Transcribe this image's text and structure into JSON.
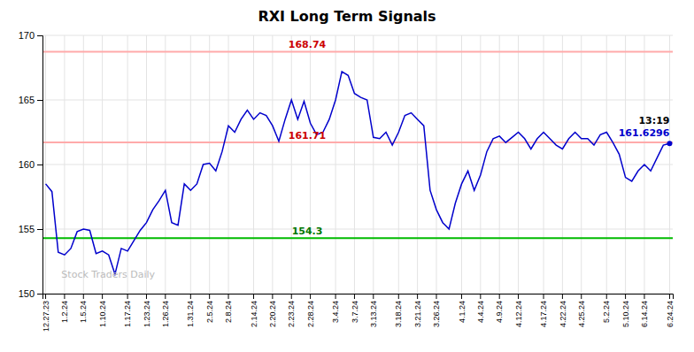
{
  "chart_data": {
    "type": "line",
    "title": "RXI Long Term Signals",
    "categories": [
      "12.27.23",
      null,
      null,
      "1.2.24",
      null,
      null,
      "1.5.24",
      null,
      null,
      "1.10.24",
      null,
      null,
      null,
      "1.17.24",
      null,
      null,
      "1.23.24",
      null,
      null,
      "1.26.24",
      null,
      null,
      null,
      "1.31.24",
      null,
      null,
      "2.5.24",
      null,
      null,
      "2.8.24",
      null,
      null,
      null,
      "2.14.24",
      null,
      null,
      "2.20.24",
      null,
      null,
      "2.23.24",
      null,
      null,
      "2.28.24",
      null,
      null,
      null,
      "3.4.24",
      null,
      null,
      "3.7.24",
      null,
      null,
      "3.13.24",
      null,
      null,
      null,
      "3.18.24",
      null,
      null,
      "3.21.24",
      null,
      null,
      "3.26.24",
      null,
      null,
      null,
      "4.1.24",
      null,
      null,
      "4.4.24",
      null,
      null,
      "4.9.24",
      null,
      null,
      "4.12.24",
      null,
      null,
      null,
      "4.17.24",
      null,
      null,
      "4.22.24",
      null,
      null,
      "4.25.24",
      null,
      null,
      null,
      "5.2.24",
      null,
      null,
      "5.10.24",
      null,
      null,
      "6.14.24",
      null,
      null,
      null,
      "6.24.24"
    ],
    "values": [
      158.5,
      157.9,
      153.2,
      153.0,
      153.5,
      154.8,
      155.0,
      154.9,
      153.1,
      153.3,
      153.0,
      151.5,
      153.5,
      153.3,
      154.1,
      154.9,
      155.5,
      156.5,
      157.2,
      158.0,
      155.5,
      155.3,
      158.5,
      158.0,
      158.5,
      160.0,
      160.1,
      159.5,
      161.0,
      163.0,
      162.5,
      163.5,
      164.2,
      163.5,
      164.0,
      163.8,
      163.0,
      161.8,
      163.5,
      165.0,
      163.5,
      164.9,
      163.2,
      162.3,
      162.5,
      163.5,
      165.0,
      167.2,
      166.9,
      165.5,
      165.2,
      165.0,
      162.1,
      162.0,
      162.5,
      161.5,
      162.5,
      163.8,
      164.0,
      163.5,
      163.0,
      158.0,
      156.5,
      155.5,
      155.0,
      157.0,
      158.5,
      159.5,
      158.0,
      159.2,
      161.0,
      162.0,
      162.2,
      161.7,
      162.1,
      162.5,
      162.0,
      161.2,
      162.0,
      162.5,
      162.0,
      161.5,
      161.2,
      162.0,
      162.5,
      162.0,
      162.0,
      161.5,
      162.3,
      162.5,
      161.7,
      160.8,
      159.0,
      158.7,
      159.5,
      160.0,
      159.5,
      160.5,
      161.5,
      161.6296
    ],
    "color": "#0000cc",
    "ylim": [
      150,
      170
    ],
    "yticks": [
      150,
      155,
      160,
      165,
      170
    ],
    "grid": true,
    "reference_lines": [
      {
        "value": 168.74,
        "label": "168.74",
        "color": "#ffaaaa",
        "label_color": "#cc0000"
      },
      {
        "value": 161.71,
        "label": "161.71",
        "color": "#ffaaaa",
        "label_color": "#cc0000"
      },
      {
        "value": 154.3,
        "label": "154.3",
        "color": "#00bb00",
        "label_color": "#007700"
      }
    ],
    "annotations": [
      {
        "text": "13:19",
        "color": "#000000"
      },
      {
        "text": "161.6296",
        "color": "#0000cc"
      }
    ],
    "watermark": {
      "text": "Stock Traders Daily",
      "color": "#bbbbbb"
    }
  }
}
